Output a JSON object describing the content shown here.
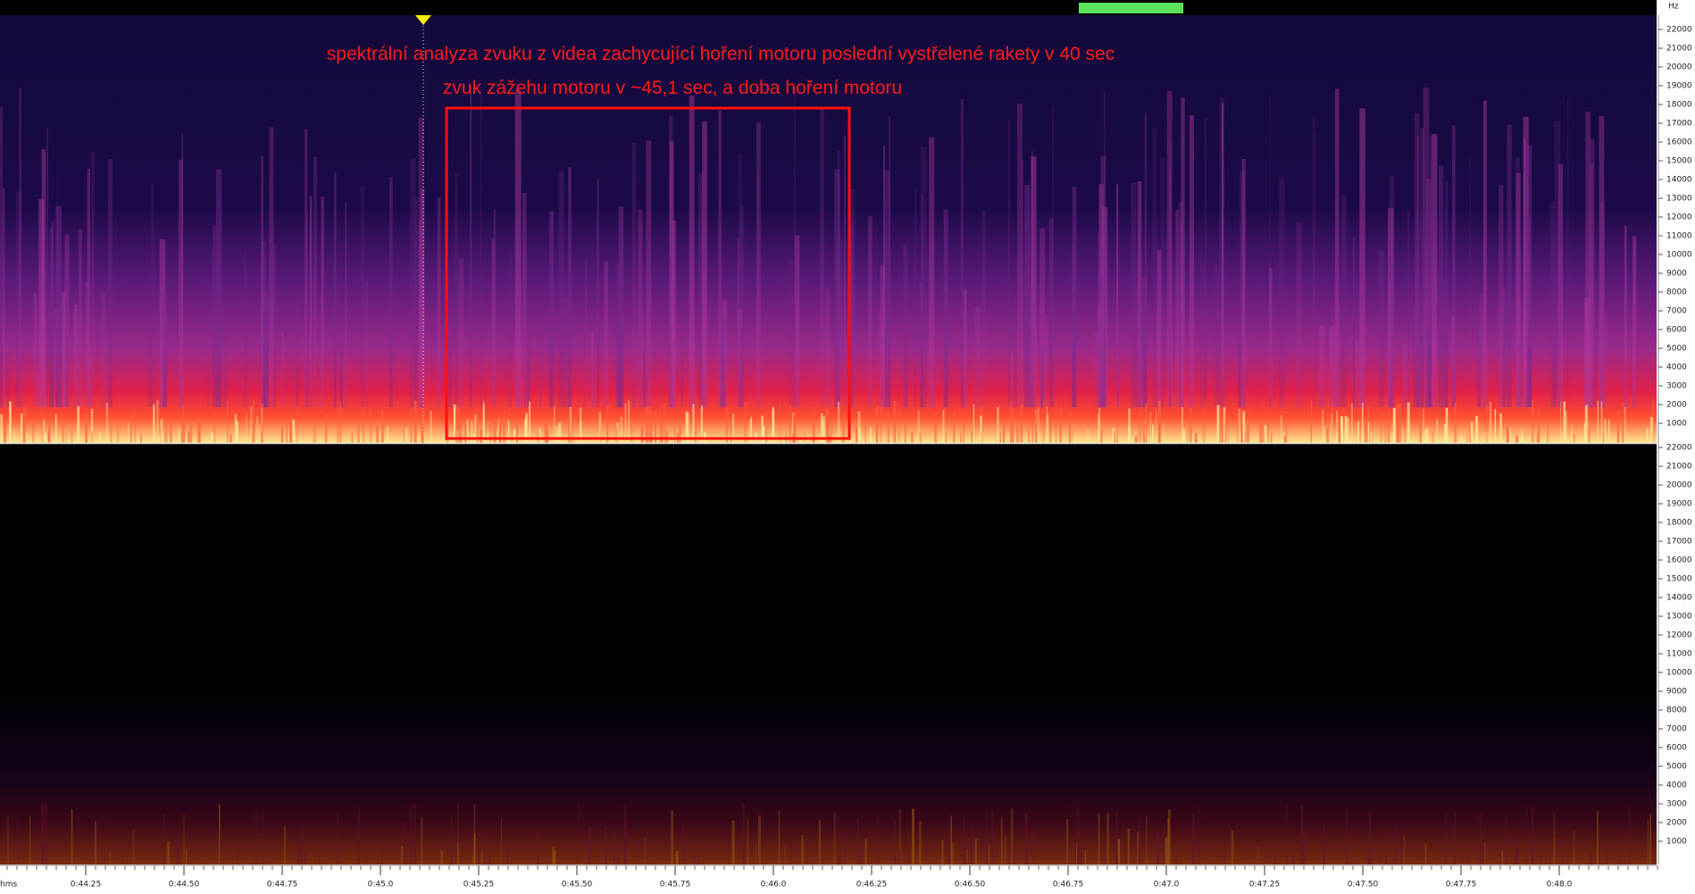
{
  "annotation": {
    "line1": "spektrální analyza zvuku z videa zachycující hoření motoru poslední vystřelené rakety v 40 sec",
    "line2": "zvuk zážehu motoru  v ~45,1 sec, a doba hoření motoru"
  },
  "freq_axis": {
    "unit": "Hz",
    "top_ticks": [
      "22000",
      "21000",
      "20000",
      "19000",
      "18000",
      "17000",
      "16000",
      "15000",
      "14000",
      "13000",
      "12000",
      "11000",
      "10000",
      "9000",
      "8000",
      "7000",
      "6000",
      "5000",
      "4000",
      "3000",
      "2000",
      "1000"
    ],
    "bottom_ticks": [
      "22000",
      "21000",
      "20000",
      "19000",
      "18000",
      "17000",
      "16000",
      "15000",
      "14000",
      "13000",
      "12000",
      "11000",
      "10000",
      "9000",
      "8000",
      "7000",
      "6000",
      "5000",
      "4000",
      "3000",
      "2000",
      "1000"
    ]
  },
  "time_axis": {
    "unit": "hms",
    "labels": [
      "0:44.25",
      "0:44.50",
      "0:44.75",
      "0:45.0",
      "0:45.25",
      "0:45.50",
      "0:45.75",
      "0:46.0",
      "0:46.25",
      "0:46.50",
      "0:46.75",
      "0:47.0",
      "0:47.25",
      "0:47.50",
      "0:47.75",
      "0:48.0"
    ]
  }
}
